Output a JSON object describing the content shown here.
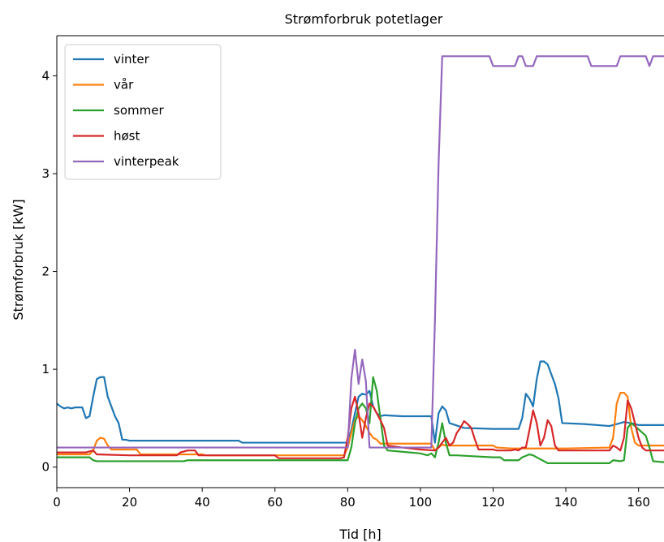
{
  "chart_data": {
    "type": "line",
    "title": "Strømforbruk potetlager",
    "xlabel": "Tid [h]",
    "ylabel": "Strømforbruk [kW]",
    "xlim": [
      0,
      167
    ],
    "ylim": [
      -0.21,
      4.41
    ],
    "xticks": [
      0,
      20,
      40,
      60,
      80,
      100,
      120,
      140,
      160
    ],
    "yticks": [
      0,
      1,
      2,
      3,
      4
    ],
    "grid": false,
    "legend_position": "upper left",
    "series": [
      {
        "name": "vinter",
        "color": "#1f77b4",
        "points": [
          [
            0,
            0.65
          ],
          [
            1,
            0.62
          ],
          [
            2,
            0.6
          ],
          [
            3,
            0.61
          ],
          [
            4,
            0.6
          ],
          [
            5,
            0.61
          ],
          [
            7,
            0.61
          ],
          [
            8,
            0.5
          ],
          [
            9,
            0.52
          ],
          [
            10,
            0.72
          ],
          [
            11,
            0.9
          ],
          [
            12,
            0.92
          ],
          [
            13,
            0.92
          ],
          [
            14,
            0.72
          ],
          [
            15,
            0.62
          ],
          [
            16,
            0.52
          ],
          [
            17,
            0.45
          ],
          [
            18,
            0.28
          ],
          [
            19,
            0.28
          ],
          [
            20,
            0.27
          ],
          [
            50,
            0.27
          ],
          [
            51,
            0.25
          ],
          [
            80,
            0.25
          ],
          [
            81,
            0.38
          ],
          [
            82,
            0.55
          ],
          [
            83,
            0.72
          ],
          [
            84,
            0.75
          ],
          [
            85,
            0.74
          ],
          [
            86,
            0.78
          ],
          [
            87,
            0.62
          ],
          [
            88,
            0.55
          ],
          [
            89,
            0.52
          ],
          [
            90,
            0.53
          ],
          [
            95,
            0.52
          ],
          [
            100,
            0.52
          ],
          [
            103,
            0.52
          ],
          [
            104,
            0.25
          ],
          [
            105,
            0.55
          ],
          [
            106,
            0.62
          ],
          [
            107,
            0.58
          ],
          [
            108,
            0.45
          ],
          [
            112,
            0.4
          ],
          [
            120,
            0.39
          ],
          [
            127,
            0.39
          ],
          [
            128,
            0.5
          ],
          [
            129,
            0.75
          ],
          [
            130,
            0.7
          ],
          [
            131,
            0.62
          ],
          [
            132,
            0.9
          ],
          [
            133,
            1.08
          ],
          [
            134,
            1.08
          ],
          [
            135,
            1.05
          ],
          [
            137,
            0.85
          ],
          [
            138,
            0.7
          ],
          [
            139,
            0.45
          ],
          [
            145,
            0.44
          ],
          [
            152,
            0.42
          ],
          [
            154,
            0.44
          ],
          [
            156,
            0.46
          ],
          [
            158,
            0.45
          ],
          [
            159,
            0.44
          ],
          [
            160,
            0.43
          ],
          [
            167,
            0.43
          ]
        ]
      },
      {
        "name": "vår",
        "color": "#ff7f0e",
        "points": [
          [
            0,
            0.13
          ],
          [
            9,
            0.13
          ],
          [
            10,
            0.17
          ],
          [
            11,
            0.27
          ],
          [
            12,
            0.3
          ],
          [
            13,
            0.29
          ],
          [
            14,
            0.22
          ],
          [
            15,
            0.18
          ],
          [
            20,
            0.18
          ],
          [
            22,
            0.18
          ],
          [
            23,
            0.13
          ],
          [
            40,
            0.13
          ],
          [
            41,
            0.12
          ],
          [
            79,
            0.12
          ],
          [
            80,
            0.2
          ],
          [
            81,
            0.35
          ],
          [
            82,
            0.48
          ],
          [
            83,
            0.52
          ],
          [
            84,
            0.48
          ],
          [
            85,
            0.42
          ],
          [
            86,
            0.35
          ],
          [
            87,
            0.3
          ],
          [
            88,
            0.28
          ],
          [
            89,
            0.24
          ],
          [
            100,
            0.24
          ],
          [
            103,
            0.24
          ],
          [
            104,
            0.17
          ],
          [
            105,
            0.2
          ],
          [
            106,
            0.23
          ],
          [
            107,
            0.22
          ],
          [
            120,
            0.22
          ],
          [
            121,
            0.2
          ],
          [
            125,
            0.19
          ],
          [
            140,
            0.19
          ],
          [
            152,
            0.2
          ],
          [
            153,
            0.3
          ],
          [
            154,
            0.65
          ],
          [
            155,
            0.76
          ],
          [
            156,
            0.76
          ],
          [
            157,
            0.72
          ],
          [
            158,
            0.4
          ],
          [
            159,
            0.25
          ],
          [
            160,
            0.22
          ],
          [
            167,
            0.22
          ]
        ]
      },
      {
        "name": "sommer",
        "color": "#2ca02c",
        "points": [
          [
            0,
            0.1
          ],
          [
            9,
            0.1
          ],
          [
            10,
            0.07
          ],
          [
            11,
            0.06
          ],
          [
            35,
            0.06
          ],
          [
            36,
            0.07
          ],
          [
            80,
            0.07
          ],
          [
            81,
            0.2
          ],
          [
            82,
            0.45
          ],
          [
            83,
            0.6
          ],
          [
            84,
            0.65
          ],
          [
            85,
            0.6
          ],
          [
            86,
            0.45
          ],
          [
            87,
            0.92
          ],
          [
            88,
            0.78
          ],
          [
            89,
            0.5
          ],
          [
            90,
            0.22
          ],
          [
            91,
            0.17
          ],
          [
            100,
            0.14
          ],
          [
            102,
            0.12
          ],
          [
            103,
            0.14
          ],
          [
            104,
            0.1
          ],
          [
            105,
            0.25
          ],
          [
            106,
            0.45
          ],
          [
            107,
            0.25
          ],
          [
            108,
            0.12
          ],
          [
            110,
            0.12
          ],
          [
            115,
            0.11
          ],
          [
            120,
            0.1
          ],
          [
            122,
            0.1
          ],
          [
            123,
            0.07
          ],
          [
            127,
            0.07
          ],
          [
            128,
            0.1
          ],
          [
            130,
            0.13
          ],
          [
            131,
            0.12
          ],
          [
            133,
            0.08
          ],
          [
            135,
            0.04
          ],
          [
            152,
            0.04
          ],
          [
            153,
            0.07
          ],
          [
            155,
            0.06
          ],
          [
            156,
            0.07
          ],
          [
            157,
            0.4
          ],
          [
            158,
            0.45
          ],
          [
            159,
            0.42
          ],
          [
            162,
            0.32
          ],
          [
            163,
            0.2
          ],
          [
            164,
            0.06
          ],
          [
            167,
            0.05
          ]
        ]
      },
      {
        "name": "høst",
        "color": "#d62728",
        "points": [
          [
            0,
            0.15
          ],
          [
            8,
            0.15
          ],
          [
            10,
            0.17
          ],
          [
            11,
            0.13
          ],
          [
            20,
            0.12
          ],
          [
            30,
            0.12
          ],
          [
            33,
            0.12
          ],
          [
            34,
            0.15
          ],
          [
            36,
            0.17
          ],
          [
            38,
            0.17
          ],
          [
            39,
            0.12
          ],
          [
            60,
            0.12
          ],
          [
            61,
            0.09
          ],
          [
            78,
            0.09
          ],
          [
            79,
            0.1
          ],
          [
            80,
            0.3
          ],
          [
            81,
            0.6
          ],
          [
            82,
            0.72
          ],
          [
            83,
            0.55
          ],
          [
            84,
            0.3
          ],
          [
            85,
            0.5
          ],
          [
            86,
            0.65
          ],
          [
            87,
            0.62
          ],
          [
            88,
            0.55
          ],
          [
            89,
            0.48
          ],
          [
            90,
            0.4
          ],
          [
            91,
            0.22
          ],
          [
            95,
            0.2
          ],
          [
            100,
            0.18
          ],
          [
            104,
            0.17
          ],
          [
            105,
            0.2
          ],
          [
            107,
            0.3
          ],
          [
            108,
            0.22
          ],
          [
            109,
            0.25
          ],
          [
            110,
            0.35
          ],
          [
            111,
            0.4
          ],
          [
            112,
            0.47
          ],
          [
            113,
            0.44
          ],
          [
            114,
            0.4
          ],
          [
            115,
            0.28
          ],
          [
            116,
            0.18
          ],
          [
            120,
            0.18
          ],
          [
            121,
            0.17
          ],
          [
            125,
            0.17
          ],
          [
            126,
            0.18
          ],
          [
            127,
            0.17
          ],
          [
            128,
            0.2
          ],
          [
            129,
            0.2
          ],
          [
            130,
            0.38
          ],
          [
            131,
            0.58
          ],
          [
            132,
            0.45
          ],
          [
            133,
            0.22
          ],
          [
            134,
            0.3
          ],
          [
            135,
            0.48
          ],
          [
            136,
            0.42
          ],
          [
            137,
            0.22
          ],
          [
            138,
            0.17
          ],
          [
            150,
            0.17
          ],
          [
            152,
            0.17
          ],
          [
            153,
            0.22
          ],
          [
            154,
            0.2
          ],
          [
            155,
            0.17
          ],
          [
            156,
            0.3
          ],
          [
            157,
            0.68
          ],
          [
            158,
            0.6
          ],
          [
            159,
            0.45
          ],
          [
            160,
            0.3
          ],
          [
            161,
            0.2
          ],
          [
            162,
            0.17
          ],
          [
            167,
            0.17
          ]
        ]
      },
      {
        "name": "vinterpeak",
        "color": "#9467bd",
        "points": [
          [
            0,
            0.2
          ],
          [
            80,
            0.2
          ],
          [
            81,
            0.9
          ],
          [
            82,
            1.2
          ],
          [
            83,
            0.85
          ],
          [
            84,
            1.1
          ],
          [
            85,
            0.88
          ],
          [
            86,
            0.2
          ],
          [
            103,
            0.2
          ],
          [
            104,
            1.5
          ],
          [
            105,
            3.1
          ],
          [
            106,
            4.2
          ],
          [
            119,
            4.2
          ],
          [
            120,
            4.1
          ],
          [
            126,
            4.1
          ],
          [
            127,
            4.2
          ],
          [
            128,
            4.2
          ],
          [
            129,
            4.1
          ],
          [
            131,
            4.1
          ],
          [
            132,
            4.2
          ],
          [
            146,
            4.2
          ],
          [
            147,
            4.1
          ],
          [
            154,
            4.1
          ],
          [
            155,
            4.2
          ],
          [
            162,
            4.2
          ],
          [
            163,
            4.1
          ],
          [
            164,
            4.2
          ],
          [
            167,
            4.2
          ]
        ]
      }
    ]
  }
}
